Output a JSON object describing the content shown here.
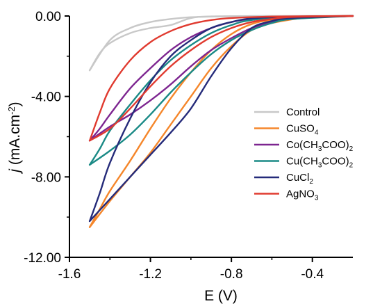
{
  "chart_data": {
    "type": "line",
    "xlabel": "E (V)",
    "ylabel_italic": "j",
    "ylabel_rest": " (mA.cm",
    "ylabel_sup": "-2",
    "ylabel_end": ")",
    "xlim": [
      -1.6,
      -0.2
    ],
    "ylim": [
      -12.0,
      0.0
    ],
    "xticks": [
      -1.6,
      -1.2,
      -0.8,
      -0.4
    ],
    "xtick_labels": [
      "-1.6",
      "-1.2",
      "-0.8",
      "-0.4"
    ],
    "yticks": [
      0.0,
      -4.0,
      -8.0,
      -12.0
    ],
    "ytick_labels": [
      "0.00",
      "-4.00",
      "-8.00",
      "-12.00"
    ],
    "grid": false,
    "legend_position": "right",
    "series": [
      {
        "name": "Control",
        "label_parts": [
          [
            "Control",
            ""
          ]
        ],
        "color": "#c8c8c8",
        "cathodic": [
          [
            -0.2,
            0
          ],
          [
            -0.7,
            -0.01
          ],
          [
            -0.9,
            -0.03
          ],
          [
            -1.0,
            -0.06
          ],
          [
            -1.1,
            -0.15
          ],
          [
            -1.2,
            -0.3
          ],
          [
            -1.3,
            -0.6
          ],
          [
            -1.4,
            -1.2
          ],
          [
            -1.5,
            -2.7
          ]
        ],
        "anodic": [
          [
            -1.5,
            -2.7
          ],
          [
            -1.45,
            -1.85
          ],
          [
            -1.4,
            -1.35
          ],
          [
            -1.3,
            -0.85
          ],
          [
            -1.2,
            -0.6
          ],
          [
            -1.1,
            -0.45
          ],
          [
            -1.0,
            -0.1
          ],
          [
            -0.9,
            -0.02
          ],
          [
            -0.7,
            0
          ],
          [
            -0.2,
            0
          ]
        ]
      },
      {
        "name": "CuSO4",
        "label_parts": [
          [
            "CuSO",
            ""
          ],
          [
            "4",
            "sub"
          ]
        ],
        "color": "#f5862a",
        "cathodic": [
          [
            -0.2,
            0
          ],
          [
            -0.4,
            -0.05
          ],
          [
            -0.6,
            -0.35
          ],
          [
            -0.7,
            -0.7
          ],
          [
            -0.8,
            -1.5
          ],
          [
            -0.9,
            -2.6
          ],
          [
            -1.0,
            -4.0
          ],
          [
            -1.1,
            -5.4
          ],
          [
            -1.2,
            -6.8
          ],
          [
            -1.3,
            -8.0
          ],
          [
            -1.4,
            -9.2
          ],
          [
            -1.5,
            -10.5
          ]
        ],
        "anodic": [
          [
            -1.5,
            -10.5
          ],
          [
            -1.45,
            -9.6
          ],
          [
            -1.4,
            -8.7
          ],
          [
            -1.3,
            -7.2
          ],
          [
            -1.2,
            -5.6
          ],
          [
            -1.1,
            -4.1
          ],
          [
            -1.0,
            -2.8
          ],
          [
            -0.9,
            -1.7
          ],
          [
            -0.8,
            -0.9
          ],
          [
            -0.7,
            -0.4
          ],
          [
            -0.6,
            -0.2
          ],
          [
            -0.4,
            -0.04
          ],
          [
            -0.2,
            0
          ]
        ]
      },
      {
        "name": "Co(CH3COO)2",
        "label_parts": [
          [
            "Co(CH",
            ""
          ],
          [
            "3",
            "sub"
          ],
          [
            "COO)",
            ""
          ],
          [
            "2",
            "sub"
          ]
        ],
        "color": "#7d2590",
        "cathodic": [
          [
            -0.2,
            0
          ],
          [
            -0.5,
            -0.1
          ],
          [
            -0.6,
            -0.3
          ],
          [
            -0.7,
            -0.6
          ],
          [
            -0.8,
            -1.1
          ],
          [
            -0.9,
            -1.7
          ],
          [
            -1.0,
            -2.5
          ],
          [
            -1.1,
            -3.4
          ],
          [
            -1.2,
            -4.2
          ],
          [
            -1.3,
            -4.9
          ],
          [
            -1.4,
            -5.5
          ],
          [
            -1.5,
            -6.2
          ]
        ],
        "anodic": [
          [
            -1.5,
            -6.2
          ],
          [
            -1.45,
            -5.6
          ],
          [
            -1.4,
            -4.9
          ],
          [
            -1.3,
            -3.6
          ],
          [
            -1.2,
            -2.6
          ],
          [
            -1.1,
            -1.7
          ],
          [
            -1.0,
            -1.05
          ],
          [
            -0.9,
            -0.6
          ],
          [
            -0.8,
            -0.3
          ],
          [
            -0.7,
            -0.15
          ],
          [
            -0.5,
            -0.04
          ],
          [
            -0.2,
            0
          ]
        ]
      },
      {
        "name": "Cu(CH3COO)2",
        "label_parts": [
          [
            "Cu(CH",
            ""
          ],
          [
            "3",
            "sub"
          ],
          [
            "COO)",
            ""
          ],
          [
            "2",
            "sub"
          ]
        ],
        "color": "#1a8a86",
        "cathodic": [
          [
            -0.2,
            0
          ],
          [
            -0.5,
            -0.15
          ],
          [
            -0.6,
            -0.35
          ],
          [
            -0.7,
            -0.7
          ],
          [
            -0.8,
            -1.2
          ],
          [
            -0.9,
            -1.9
          ],
          [
            -1.0,
            -2.8
          ],
          [
            -1.1,
            -3.8
          ],
          [
            -1.2,
            -4.9
          ],
          [
            -1.3,
            -5.9
          ],
          [
            -1.4,
            -6.7
          ],
          [
            -1.5,
            -7.4
          ]
        ],
        "anodic": [
          [
            -1.5,
            -7.4
          ],
          [
            -1.45,
            -6.6
          ],
          [
            -1.4,
            -5.7
          ],
          [
            -1.3,
            -4.4
          ],
          [
            -1.2,
            -3.2
          ],
          [
            -1.1,
            -2.2
          ],
          [
            -1.0,
            -1.45
          ],
          [
            -0.9,
            -0.85
          ],
          [
            -0.8,
            -0.45
          ],
          [
            -0.7,
            -0.2
          ],
          [
            -0.5,
            -0.05
          ],
          [
            -0.2,
            0
          ]
        ]
      },
      {
        "name": "CuCl2",
        "label_parts": [
          [
            "CuCl",
            ""
          ],
          [
            "2",
            "sub"
          ]
        ],
        "color": "#252b7a",
        "cathodic": [
          [
            -0.2,
            0
          ],
          [
            -0.5,
            -0.1
          ],
          [
            -0.6,
            -0.25
          ],
          [
            -0.7,
            -0.6
          ],
          [
            -0.8,
            -1.6
          ],
          [
            -0.9,
            -3.0
          ],
          [
            -1.0,
            -4.6
          ],
          [
            -1.1,
            -5.8
          ],
          [
            -1.2,
            -6.9
          ],
          [
            -1.3,
            -8.0
          ],
          [
            -1.4,
            -9.1
          ],
          [
            -1.5,
            -10.2
          ]
        ],
        "anodic": [
          [
            -1.5,
            -10.2
          ],
          [
            -1.45,
            -8.8
          ],
          [
            -1.4,
            -7.3
          ],
          [
            -1.3,
            -5.1
          ],
          [
            -1.2,
            -3.3
          ],
          [
            -1.1,
            -2.0
          ],
          [
            -1.0,
            -1.2
          ],
          [
            -0.9,
            -0.6
          ],
          [
            -0.8,
            -0.3
          ],
          [
            -0.7,
            -0.12
          ],
          [
            -0.5,
            -0.03
          ],
          [
            -0.2,
            0
          ]
        ]
      },
      {
        "name": "AgNO3",
        "label_parts": [
          [
            "AgNO",
            ""
          ],
          [
            "3",
            "sub"
          ]
        ],
        "color": "#e03a2f",
        "cathodic": [
          [
            -0.2,
            0
          ],
          [
            -0.5,
            -0.05
          ],
          [
            -0.6,
            -0.15
          ],
          [
            -0.7,
            -0.3
          ],
          [
            -0.8,
            -0.6
          ],
          [
            -0.9,
            -1.05
          ],
          [
            -1.0,
            -1.7
          ],
          [
            -1.1,
            -2.5
          ],
          [
            -1.2,
            -3.5
          ],
          [
            -1.3,
            -4.6
          ],
          [
            -1.4,
            -5.6
          ],
          [
            -1.5,
            -6.2
          ]
        ],
        "anodic": [
          [
            -1.5,
            -6.2
          ],
          [
            -1.45,
            -4.8
          ],
          [
            -1.4,
            -3.6
          ],
          [
            -1.3,
            -2.2
          ],
          [
            -1.2,
            -1.3
          ],
          [
            -1.1,
            -0.75
          ],
          [
            -1.0,
            -0.4
          ],
          [
            -0.9,
            -0.2
          ],
          [
            -0.8,
            -0.1
          ],
          [
            -0.6,
            -0.03
          ],
          [
            -0.2,
            0
          ]
        ]
      }
    ]
  }
}
